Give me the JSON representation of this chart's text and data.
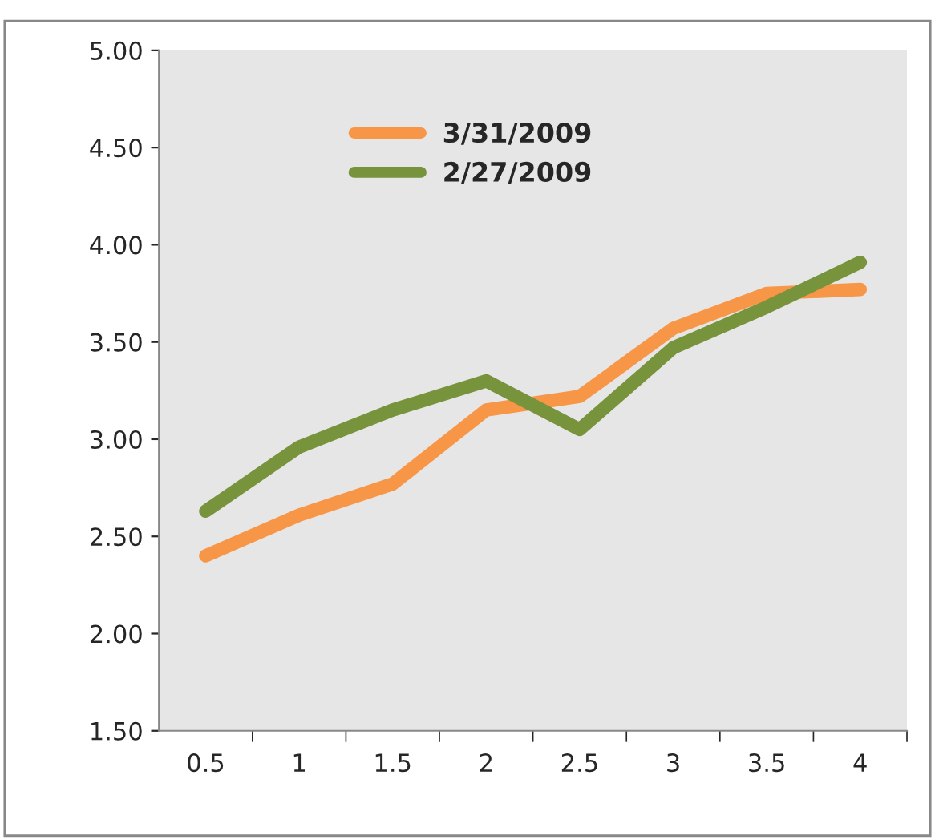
{
  "chart_data": {
    "type": "line",
    "categories": [
      "0.5",
      "1",
      "1.5",
      "2",
      "2.5",
      "3",
      "3.5",
      "4"
    ],
    "series": [
      {
        "name": "3/31/2009",
        "color": "#f79646",
        "values": [
          2.4,
          2.61,
          2.77,
          3.15,
          3.22,
          3.57,
          3.75,
          3.77
        ]
      },
      {
        "name": "2/27/2009",
        "color": "#77933c",
        "values": [
          2.63,
          2.96,
          3.15,
          3.3,
          3.05,
          3.47,
          3.68,
          3.91
        ]
      }
    ],
    "ylim": [
      1.5,
      5.0
    ],
    "yticks": [
      {
        "value": 1.5,
        "label": "1.50"
      },
      {
        "value": 2.0,
        "label": "2.00"
      },
      {
        "value": 2.5,
        "label": "2.50"
      },
      {
        "value": 3.0,
        "label": "3.00"
      },
      {
        "value": 3.5,
        "label": "3.50"
      },
      {
        "value": 4.0,
        "label": "4.00"
      },
      {
        "value": 4.5,
        "label": "4.50"
      },
      {
        "value": 5.0,
        "label": "5.00"
      }
    ],
    "legend": "top",
    "grid": false,
    "marker": "none",
    "line_style": "solid"
  }
}
